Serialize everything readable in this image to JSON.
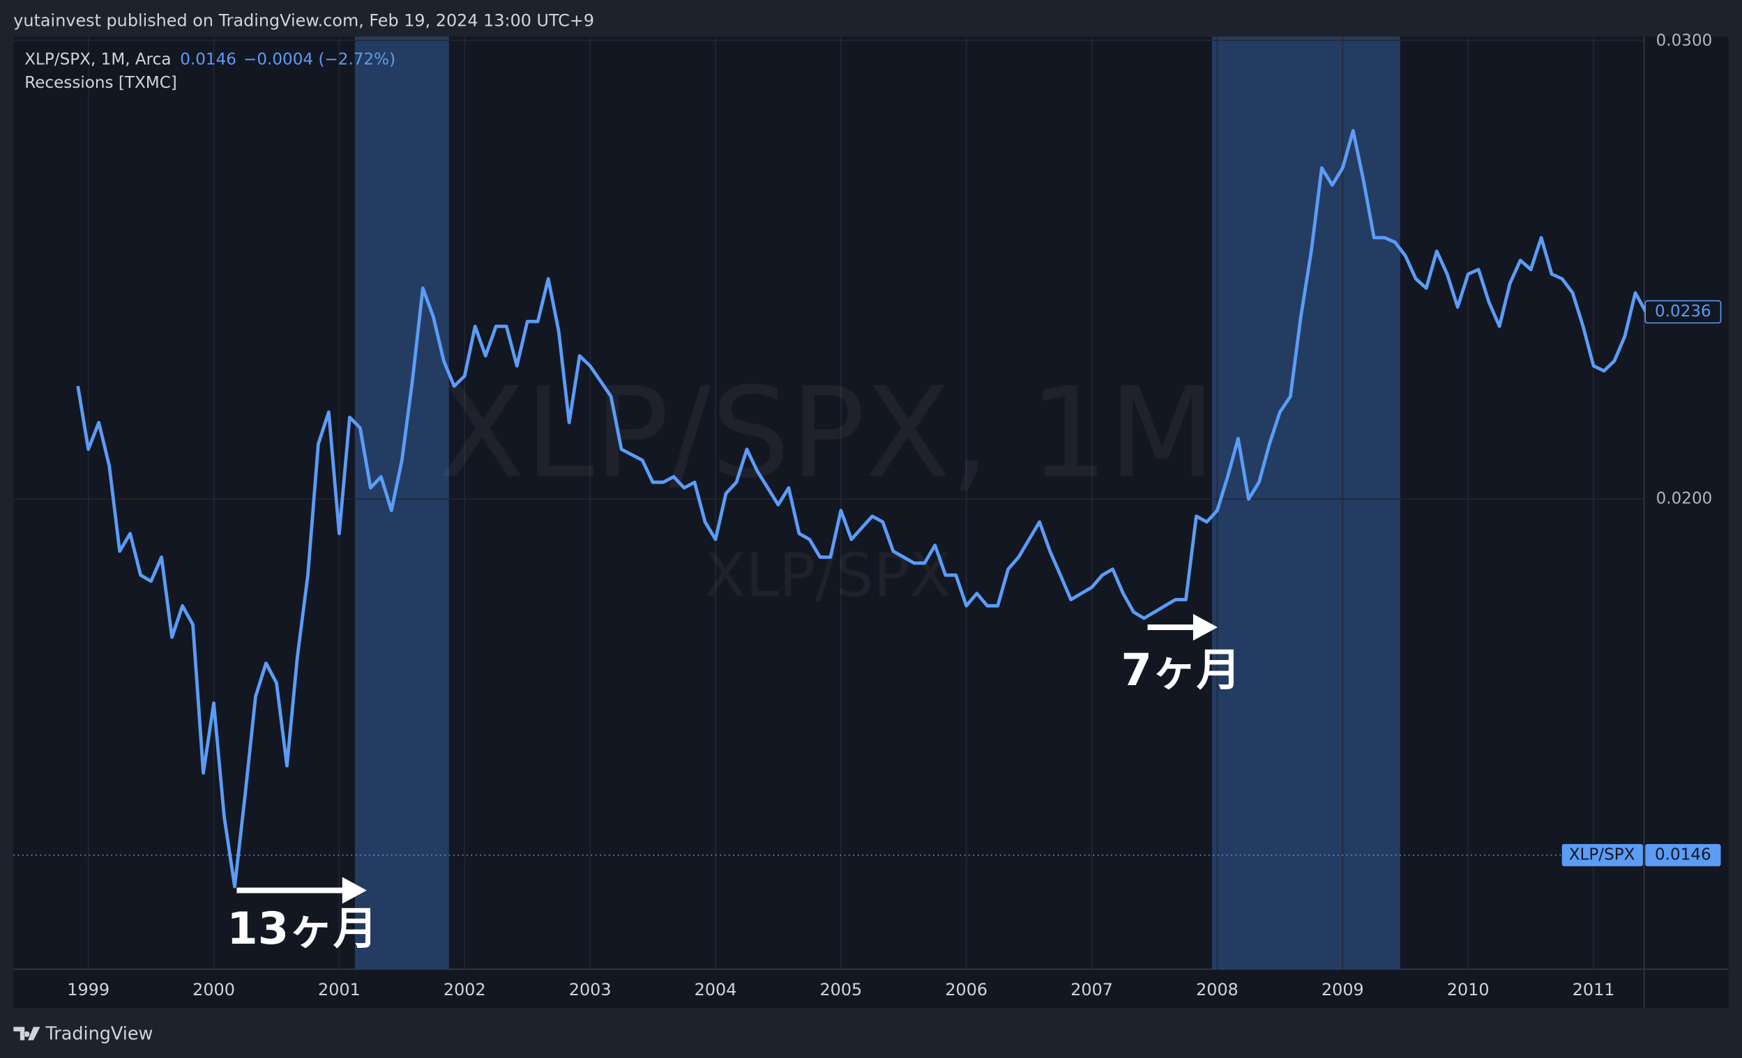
{
  "chart_data": {
    "type": "line",
    "header": "yutainvest published on TradingView.com, Feb 19, 2024 13:00 UTC+9",
    "symbol": "XLP/SPX, 1M, Arca",
    "last_price": 0.0146,
    "change": "−0.0004 (−2.72%)",
    "indicator": "Recessions [TXMC]",
    "watermark": "XLP/SPX, 1M",
    "watermark_sub": "XLP/SPX",
    "price_line_name": "XLP/SPX",
    "annotations": [
      "13ヶ月",
      "7ヶ月"
    ],
    "footer": "TradingView",
    "log_scale": true,
    "grid": true,
    "recessions": [
      {
        "start": "2001-03",
        "end": "2001-11"
      },
      {
        "start": "2008-01",
        "end": "2009-06"
      }
    ],
    "recession_color": "#2b4a78",
    "x": [
      "1998-12",
      "1999-01",
      "1999-02",
      "1999-03",
      "1999-04",
      "1999-05",
      "1999-06",
      "1999-07",
      "1999-08",
      "1999-09",
      "1999-10",
      "1999-11",
      "1999-12",
      "2000-01",
      "2000-02",
      "2000-03",
      "2000-04",
      "2000-05",
      "2000-06",
      "2000-07",
      "2000-08",
      "2000-09",
      "2000-10",
      "2000-11",
      "2000-12",
      "2001-01",
      "2001-02",
      "2001-03",
      "2001-04",
      "2001-05",
      "2001-06",
      "2001-07",
      "2001-08",
      "2001-09",
      "2001-10",
      "2001-11",
      "2001-12",
      "2002-01",
      "2002-02",
      "2002-03",
      "2002-04",
      "2002-05",
      "2002-06",
      "2002-07",
      "2002-08",
      "2002-09",
      "2002-10",
      "2002-11",
      "2002-12",
      "2003-01",
      "2003-02",
      "2003-03",
      "2003-04",
      "2003-05",
      "2003-06",
      "2003-07",
      "2003-08",
      "2003-09",
      "2003-10",
      "2003-11",
      "2003-12",
      "2004-01",
      "2004-02",
      "2004-03",
      "2004-04",
      "2004-05",
      "2004-06",
      "2004-07",
      "2004-08",
      "2004-09",
      "2004-10",
      "2004-11",
      "2004-12",
      "2005-01",
      "2005-02",
      "2005-03",
      "2005-04",
      "2005-05",
      "2005-06",
      "2005-07",
      "2005-08",
      "2005-09",
      "2005-10",
      "2005-11",
      "2005-12",
      "2006-01",
      "2006-02",
      "2006-03",
      "2006-04",
      "2006-05",
      "2006-06",
      "2006-07",
      "2006-08",
      "2006-09",
      "2006-10",
      "2006-11",
      "2006-12",
      "2007-01",
      "2007-02",
      "2007-03",
      "2007-04",
      "2007-05",
      "2007-06",
      "2007-07",
      "2007-08",
      "2007-09",
      "2007-10",
      "2007-11",
      "2007-12",
      "2008-01",
      "2008-02",
      "2008-03",
      "2008-04",
      "2008-05",
      "2008-06",
      "2008-07",
      "2008-08",
      "2008-09",
      "2008-10",
      "2008-11",
      "2008-12",
      "2009-01",
      "2009-02",
      "2009-03",
      "2009-04",
      "2009-05",
      "2009-06",
      "2009-07",
      "2009-08",
      "2009-09",
      "2009-10",
      "2009-11",
      "2009-12",
      "2010-01",
      "2010-02",
      "2010-03",
      "2010-04",
      "2010-05",
      "2010-06",
      "2010-07",
      "2010-08",
      "2010-09",
      "2010-10",
      "2010-11",
      "2010-12",
      "2011-01",
      "2011-02",
      "2011-03",
      "2011-04",
      "2011-05",
      "2011-06"
    ],
    "series": [
      {
        "name": "XLP/SPX",
        "color": "#5b9cf6",
        "values": [
          0.0221,
          0.0209,
          0.0214,
          0.0206,
          0.0191,
          0.0194,
          0.0187,
          0.0186,
          0.019,
          0.0177,
          0.0182,
          0.0179,
          0.0157,
          0.0167,
          0.0151,
          0.0142,
          0.0154,
          0.0168,
          0.0173,
          0.017,
          0.0158,
          0.0174,
          0.0187,
          0.021,
          0.0216,
          0.0194,
          0.0215,
          0.0213,
          0.0202,
          0.0204,
          0.0198,
          0.0207,
          0.0222,
          0.0241,
          0.0235,
          0.0226,
          0.0221,
          0.0223,
          0.0233,
          0.0227,
          0.0233,
          0.0233,
          0.0225,
          0.0234,
          0.0234,
          0.0243,
          0.0232,
          0.0214,
          0.0227,
          0.0225,
          0.0222,
          0.0219,
          0.0209,
          0.0208,
          0.0207,
          0.0203,
          0.0203,
          0.0204,
          0.0202,
          0.0203,
          0.0196,
          0.0193,
          0.0201,
          0.0203,
          0.0209,
          0.0205,
          0.0202,
          0.0199,
          0.0202,
          0.0194,
          0.0193,
          0.019,
          0.019,
          0.0198,
          0.0193,
          0.0195,
          0.0197,
          0.0196,
          0.0191,
          0.019,
          0.0189,
          0.0189,
          0.0192,
          0.0187,
          0.0187,
          0.0182,
          0.0184,
          0.0182,
          0.0182,
          0.0188,
          0.019,
          0.0193,
          0.0196,
          0.0191,
          0.0187,
          0.0183,
          0.0184,
          0.0185,
          0.0187,
          0.0188,
          0.0184,
          0.0181,
          0.018,
          0.0181,
          0.0182,
          0.0183,
          0.0183,
          0.0197,
          0.0196,
          0.0198,
          0.0204,
          0.0211,
          0.02,
          0.0203,
          0.021,
          0.0216,
          0.0219,
          0.0235,
          0.0249,
          0.0268,
          0.0264,
          0.0268,
          0.0277,
          0.0265,
          0.0252,
          0.0252,
          0.0251,
          0.0248,
          0.0243,
          0.0241,
          0.0249,
          0.0244,
          0.0237,
          0.0244,
          0.0245,
          0.0238,
          0.0233,
          0.0242,
          0.0247,
          0.0245,
          0.0252,
          0.0244,
          0.0243,
          0.024,
          0.0233,
          0.0225,
          0.0224,
          0.0226,
          0.0231,
          0.024,
          0.0236
        ]
      }
    ],
    "ylim": [
      0.0132,
      0.0301
    ],
    "yticks": [
      {
        "value": 0.03,
        "label": "0.0300"
      },
      {
        "value": 0.02,
        "label": "0.0200"
      }
    ],
    "xticks": [
      {
        "value": "1999-01",
        "label": "1999"
      },
      {
        "value": "2000-01",
        "label": "2000"
      },
      {
        "value": "2001-01",
        "label": "2001"
      },
      {
        "value": "2002-01",
        "label": "2002"
      },
      {
        "value": "2003-01",
        "label": "2003"
      },
      {
        "value": "2004-01",
        "label": "2004"
      },
      {
        "value": "2005-01",
        "label": "2005"
      },
      {
        "value": "2006-01",
        "label": "2006"
      },
      {
        "value": "2007-01",
        "label": "2007"
      },
      {
        "value": "2008-01",
        "label": "2008"
      },
      {
        "value": "2009-01",
        "label": "2009"
      },
      {
        "value": "2010-01",
        "label": "2010"
      },
      {
        "value": "2011-01",
        "label": "2011"
      }
    ]
  }
}
